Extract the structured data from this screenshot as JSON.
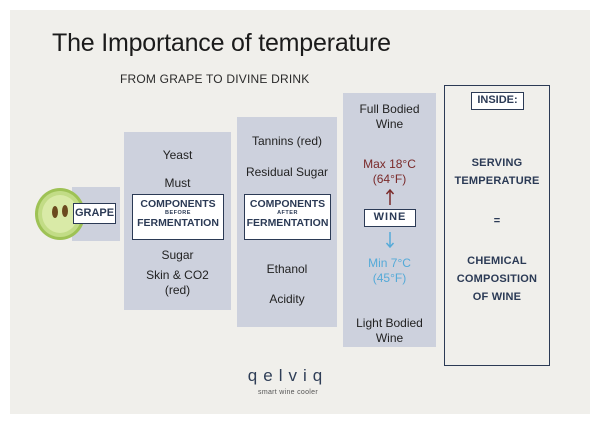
{
  "title": "The Importance of temperature",
  "subtitle": "FROM GRAPE TO DIVINE DRINK",
  "grape": {
    "label": "GRAPE",
    "icon": "grape-slice-icon"
  },
  "before": {
    "top_items": [
      "Yeast",
      "Must"
    ],
    "box_line1": "COMPONENTS",
    "box_line2": "BEFORE",
    "box_line3": "FERMENTATION",
    "bottom_items": [
      "Sugar",
      "Skin & CO2",
      "(red)"
    ]
  },
  "after": {
    "top_items": [
      "Tannins (red)",
      "Residual Sugar"
    ],
    "box_line1": "COMPONENTS",
    "box_line2": "AFTER",
    "box_line3": "FERMENTATION",
    "bottom_items": [
      "Ethanol",
      "Acidity"
    ]
  },
  "wine": {
    "top_label": [
      "Full Bodied",
      "Wine"
    ],
    "max_temp": [
      "Max 18°C",
      "(64°F)"
    ],
    "box": "WINE",
    "min_temp": [
      "Min 7°C",
      "(45°F)"
    ],
    "bottom_label": [
      "Light Bodied",
      "Wine"
    ]
  },
  "inside": {
    "label": "INSIDE:",
    "line1": [
      "SERVING",
      "TEMPERATURE"
    ],
    "equals": "=",
    "line2": [
      "CHEMICAL",
      "COMPOSITION",
      "OF WINE"
    ]
  },
  "brand": {
    "name": "qelviq",
    "tagline": "smart wine cooler"
  },
  "colors": {
    "panel": "#cdd1dd",
    "navy": "#2b3a55",
    "hot": "#7a2a2a",
    "cold": "#55aad8",
    "background": "#f0efeb"
  }
}
